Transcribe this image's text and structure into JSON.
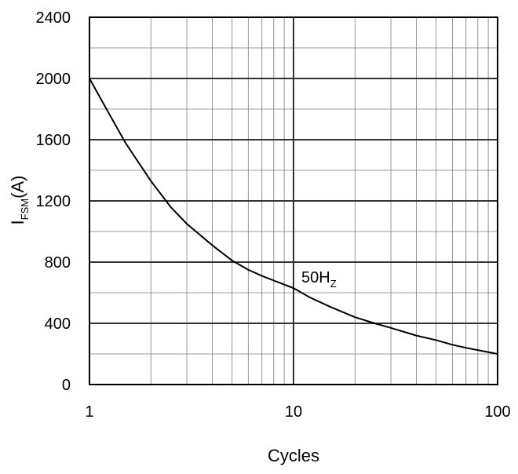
{
  "chart_data": {
    "type": "line",
    "xscale": "log",
    "xlim": [
      1,
      100
    ],
    "ylim": [
      0,
      2400
    ],
    "x_ticks": [
      "1",
      "10",
      "100"
    ],
    "y_ticks": [
      "0",
      "400",
      "800",
      "1200",
      "1600",
      "2000",
      "2400"
    ],
    "xlabel": "Cycles",
    "ylabel": {
      "main": "I",
      "sub": "FSM",
      "tail": "(A)"
    },
    "grid": true,
    "annotation": {
      "main": "50H",
      "sub": "Z"
    },
    "series": [
      {
        "x": [
          1,
          1.2,
          1.5,
          2,
          2.5,
          3,
          4,
          5,
          6,
          7,
          8,
          10,
          12,
          15,
          20,
          25,
          30,
          40,
          50,
          60,
          70,
          80,
          100
        ],
        "y": [
          2000,
          1810,
          1580,
          1330,
          1160,
          1050,
          910,
          810,
          750,
          710,
          680,
          630,
          570,
          510,
          440,
          400,
          370,
          320,
          290,
          260,
          240,
          225,
          200
        ]
      }
    ],
    "colors": {
      "line": "#000000",
      "grid": "#000000",
      "background": "#ffffff"
    }
  }
}
